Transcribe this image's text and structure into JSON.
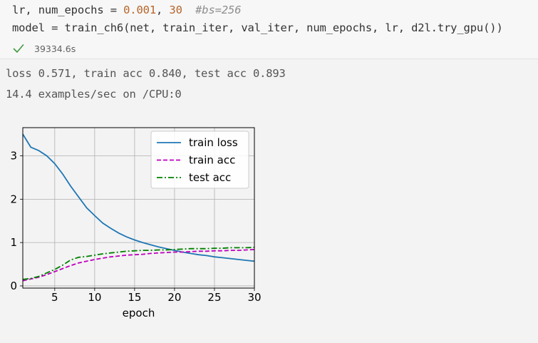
{
  "code": {
    "line1": {
      "a": "lr, num_epochs = ",
      "lr_value": "0.001",
      "sep": ", ",
      "epochs_value": "30",
      "comment": "  #bs=256"
    },
    "line2": "model = train_ch6(net, train_iter, val_iter, num_epochs, lr, d2l.try_gpu())"
  },
  "status": {
    "icon": "check-icon",
    "check_color": "#3f9a3f",
    "execution_time": "39334.6s"
  },
  "output": {
    "line1": "loss 0.571, train acc 0.840, test acc 0.893",
    "line2": "14.4 examples/sec on /CPU:0"
  },
  "chart_data": {
    "type": "line",
    "xlabel": "epoch",
    "ylabel": "",
    "xlim": [
      1,
      30
    ],
    "ylim": [
      -0.05,
      3.65
    ],
    "xticks": [
      5,
      10,
      15,
      20,
      25,
      30
    ],
    "yticks": [
      0,
      1,
      2,
      3
    ],
    "grid": true,
    "legend_position": "top-right",
    "x": [
      1,
      2,
      3,
      4,
      5,
      6,
      7,
      8,
      9,
      10,
      11,
      12,
      13,
      14,
      15,
      16,
      17,
      18,
      19,
      20,
      21,
      22,
      23,
      24,
      25,
      26,
      27,
      28,
      29,
      30
    ],
    "series": [
      {
        "name": "train loss",
        "color": "#1f77b4",
        "dash": "solid",
        "values": [
          3.5,
          3.2,
          3.12,
          3.0,
          2.82,
          2.58,
          2.3,
          2.05,
          1.8,
          1.62,
          1.45,
          1.33,
          1.22,
          1.13,
          1.06,
          1.0,
          0.95,
          0.9,
          0.86,
          0.82,
          0.78,
          0.75,
          0.72,
          0.7,
          0.67,
          0.65,
          0.63,
          0.61,
          0.59,
          0.57
        ]
      },
      {
        "name": "train acc",
        "color": "#bf00bf",
        "dash": "dashed",
        "values": [
          0.12,
          0.16,
          0.2,
          0.26,
          0.33,
          0.4,
          0.47,
          0.53,
          0.57,
          0.61,
          0.64,
          0.67,
          0.69,
          0.71,
          0.72,
          0.73,
          0.75,
          0.76,
          0.77,
          0.78,
          0.78,
          0.79,
          0.8,
          0.8,
          0.81,
          0.81,
          0.82,
          0.82,
          0.83,
          0.84
        ]
      },
      {
        "name": "test acc",
        "color": "#008000",
        "dash": "dashdot",
        "values": [
          0.15,
          0.17,
          0.22,
          0.3,
          0.38,
          0.48,
          0.6,
          0.66,
          0.68,
          0.71,
          0.74,
          0.76,
          0.78,
          0.8,
          0.81,
          0.82,
          0.82,
          0.83,
          0.83,
          0.84,
          0.85,
          0.86,
          0.86,
          0.86,
          0.87,
          0.87,
          0.88,
          0.88,
          0.88,
          0.89
        ]
      }
    ]
  }
}
